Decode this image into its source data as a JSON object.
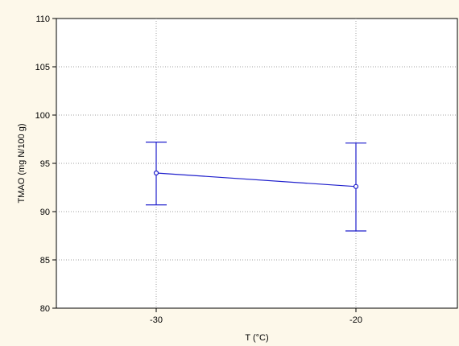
{
  "chart_data": {
    "type": "line",
    "title": "",
    "xlabel": "T (°C)",
    "ylabel": "TMAO (mg N/100 g)",
    "x_categories": [
      "-30",
      "-20"
    ],
    "ylim": [
      80,
      110
    ],
    "yticks": [
      80,
      85,
      90,
      95,
      100,
      105,
      110
    ],
    "grid": true,
    "series": [
      {
        "values": [
          94.0,
          92.6
        ],
        "error_low": [
          90.7,
          88.0
        ],
        "error_high": [
          97.2,
          97.1
        ]
      }
    ],
    "colors": {
      "series": "#1f1fcc",
      "grid": "#a0a0a0",
      "background": "#fdf8ea",
      "plot_bg": "#ffffff"
    }
  }
}
